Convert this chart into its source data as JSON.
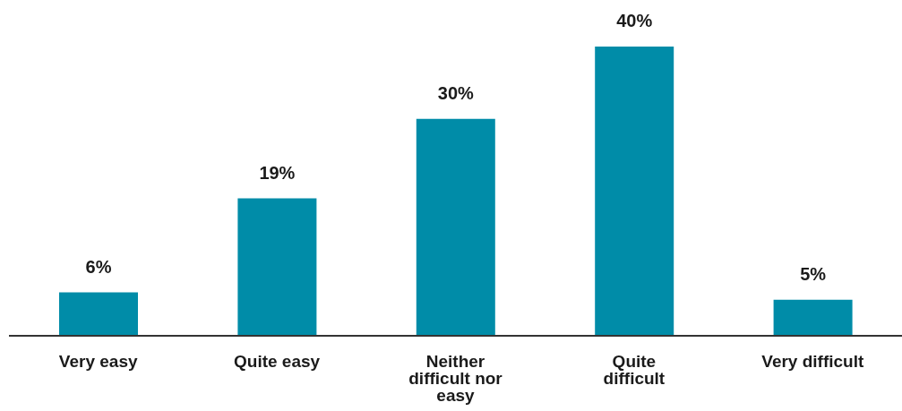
{
  "chart_data": {
    "type": "bar",
    "categories": [
      "Very easy",
      "Quite easy",
      "Neither difficult nor easy",
      "Quite difficult",
      "Very difficult"
    ],
    "values": [
      6,
      19,
      30,
      40,
      5
    ],
    "value_labels": [
      "6%",
      "19%",
      "30%",
      "40%",
      "5%"
    ],
    "color": "#008ca8",
    "grid": false,
    "legend": false
  }
}
